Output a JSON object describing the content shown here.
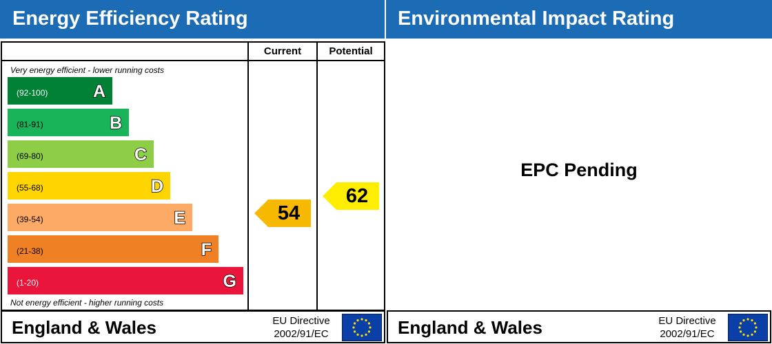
{
  "headers": {
    "left": "Energy Efficiency Rating",
    "right": "Environmental Impact Rating"
  },
  "columns": {
    "current": "Current",
    "potential": "Potential"
  },
  "notes": {
    "top": "Very energy efficient - lower running costs",
    "bottom": "Not energy efficient - higher running costs"
  },
  "chart_data": {
    "type": "bar",
    "title": "Energy Efficiency Rating",
    "bands": [
      {
        "letter": "A",
        "range": "(92-100)",
        "min": 92,
        "max": 100,
        "color": "#008136"
      },
      {
        "letter": "B",
        "range": "(81-91)",
        "min": 81,
        "max": 91,
        "color": "#19b459"
      },
      {
        "letter": "C",
        "range": "(69-80)",
        "min": 69,
        "max": 80,
        "color": "#8dce46"
      },
      {
        "letter": "D",
        "range": "(55-68)",
        "min": 55,
        "max": 68,
        "color": "#ffd500"
      },
      {
        "letter": "E",
        "range": "(39-54)",
        "min": 39,
        "max": 54,
        "color": "#fcaa65"
      },
      {
        "letter": "F",
        "range": "(21-38)",
        "min": 21,
        "max": 38,
        "color": "#ef8023"
      },
      {
        "letter": "G",
        "range": "(1-20)",
        "min": 1,
        "max": 20,
        "color": "#e9153b"
      }
    ],
    "current": {
      "value": 54,
      "band": "E",
      "color": "#f6b800"
    },
    "potential": {
      "value": 62,
      "band": "D",
      "color": "#ffee00"
    }
  },
  "environmental": {
    "status": "EPC Pending"
  },
  "footer": {
    "region": "England & Wales",
    "directive_line1": "EU Directive",
    "directive_line2": "2002/91/EC"
  },
  "colors": {
    "header_bg": "#1c6bb5",
    "eu_flag": "#0b3fa8",
    "eu_stars": "#ffdd00"
  }
}
